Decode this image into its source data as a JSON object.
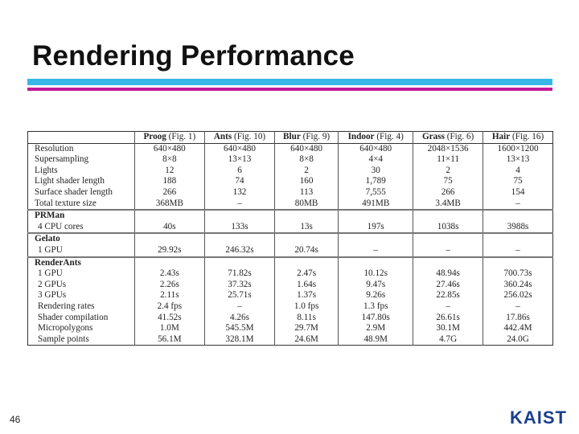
{
  "title": "Rendering Performance",
  "slide_number": "46",
  "logo_text": "KAIST",
  "colors": {
    "bar_top": "#38b6e6",
    "bar_bottom": "#c21a9b",
    "logo": "#1b3f8f"
  },
  "table": {
    "header": [
      {
        "name": "Proog",
        "ref": "(Fig. 1)"
      },
      {
        "name": "Ants",
        "ref": "(Fig. 10)"
      },
      {
        "name": "Blur",
        "ref": "(Fig. 9)"
      },
      {
        "name": "Indoor",
        "ref": "(Fig. 4)"
      },
      {
        "name": "Grass",
        "ref": "(Fig. 6)"
      },
      {
        "name": "Hair",
        "ref": "(Fig. 16)"
      }
    ],
    "stats": [
      {
        "label": "Resolution",
        "values": [
          "640×480",
          "640×480",
          "640×480",
          "640×480",
          "2048×1536",
          "1600×1200"
        ]
      },
      {
        "label": "Supersampling",
        "values": [
          "8×8",
          "13×13",
          "8×8",
          "4×4",
          "11×11",
          "13×13"
        ]
      },
      {
        "label": "Lights",
        "values": [
          "12",
          "6",
          "2",
          "30",
          "2",
          "4"
        ]
      },
      {
        "label": "Light shader length",
        "values": [
          "188",
          "74",
          "160",
          "1,789",
          "75",
          "75"
        ]
      },
      {
        "label": "Surface shader length",
        "values": [
          "266",
          "132",
          "113",
          "7,555",
          "266",
          "154"
        ]
      },
      {
        "label": "Total texture size",
        "values": [
          "368MB",
          "–",
          "80MB",
          "491MB",
          "3.4MB",
          "–"
        ]
      }
    ],
    "prman": {
      "label": "PRMan",
      "rows": [
        {
          "label": "4 CPU cores",
          "values": [
            "40s",
            "133s",
            "13s",
            "197s",
            "1038s",
            "3988s"
          ]
        }
      ]
    },
    "gelato": {
      "label": "Gelato",
      "rows": [
        {
          "label": "1 GPU",
          "values": [
            "29.92s",
            "246.32s",
            "20.74s",
            "–",
            "–",
            "–"
          ]
        }
      ]
    },
    "renderants": {
      "label": "RenderAnts",
      "rows": [
        {
          "label": "1 GPU",
          "values": [
            "2.43s",
            "71.82s",
            "2.47s",
            "10.12s",
            "48.94s",
            "700.73s"
          ]
        },
        {
          "label": "2 GPUs",
          "values": [
            "2.26s",
            "37.32s",
            "1.64s",
            "9.47s",
            "27.46s",
            "360.24s"
          ]
        },
        {
          "label": "3 GPUs",
          "values": [
            "2.11s",
            "25.71s",
            "1.37s",
            "9.26s",
            "22.85s",
            "256.02s"
          ]
        },
        {
          "label": "Rendering rates",
          "values": [
            "2.4 fps",
            "–",
            "1.0 fps",
            "1.3 fps",
            "–",
            "–"
          ]
        },
        {
          "label": "Shader compilation",
          "values": [
            "41.52s",
            "4.26s",
            "8.11s",
            "147.80s",
            "26.61s",
            "17.86s"
          ]
        },
        {
          "label": "Micropolygons",
          "values": [
            "1.0M",
            "545.5M",
            "29.7M",
            "2.9M",
            "30.1M",
            "442.4M"
          ]
        },
        {
          "label": "Sample points",
          "values": [
            "56.1M",
            "328.1M",
            "24.6M",
            "48.9M",
            "4.7G",
            "24.0G"
          ]
        }
      ]
    }
  }
}
